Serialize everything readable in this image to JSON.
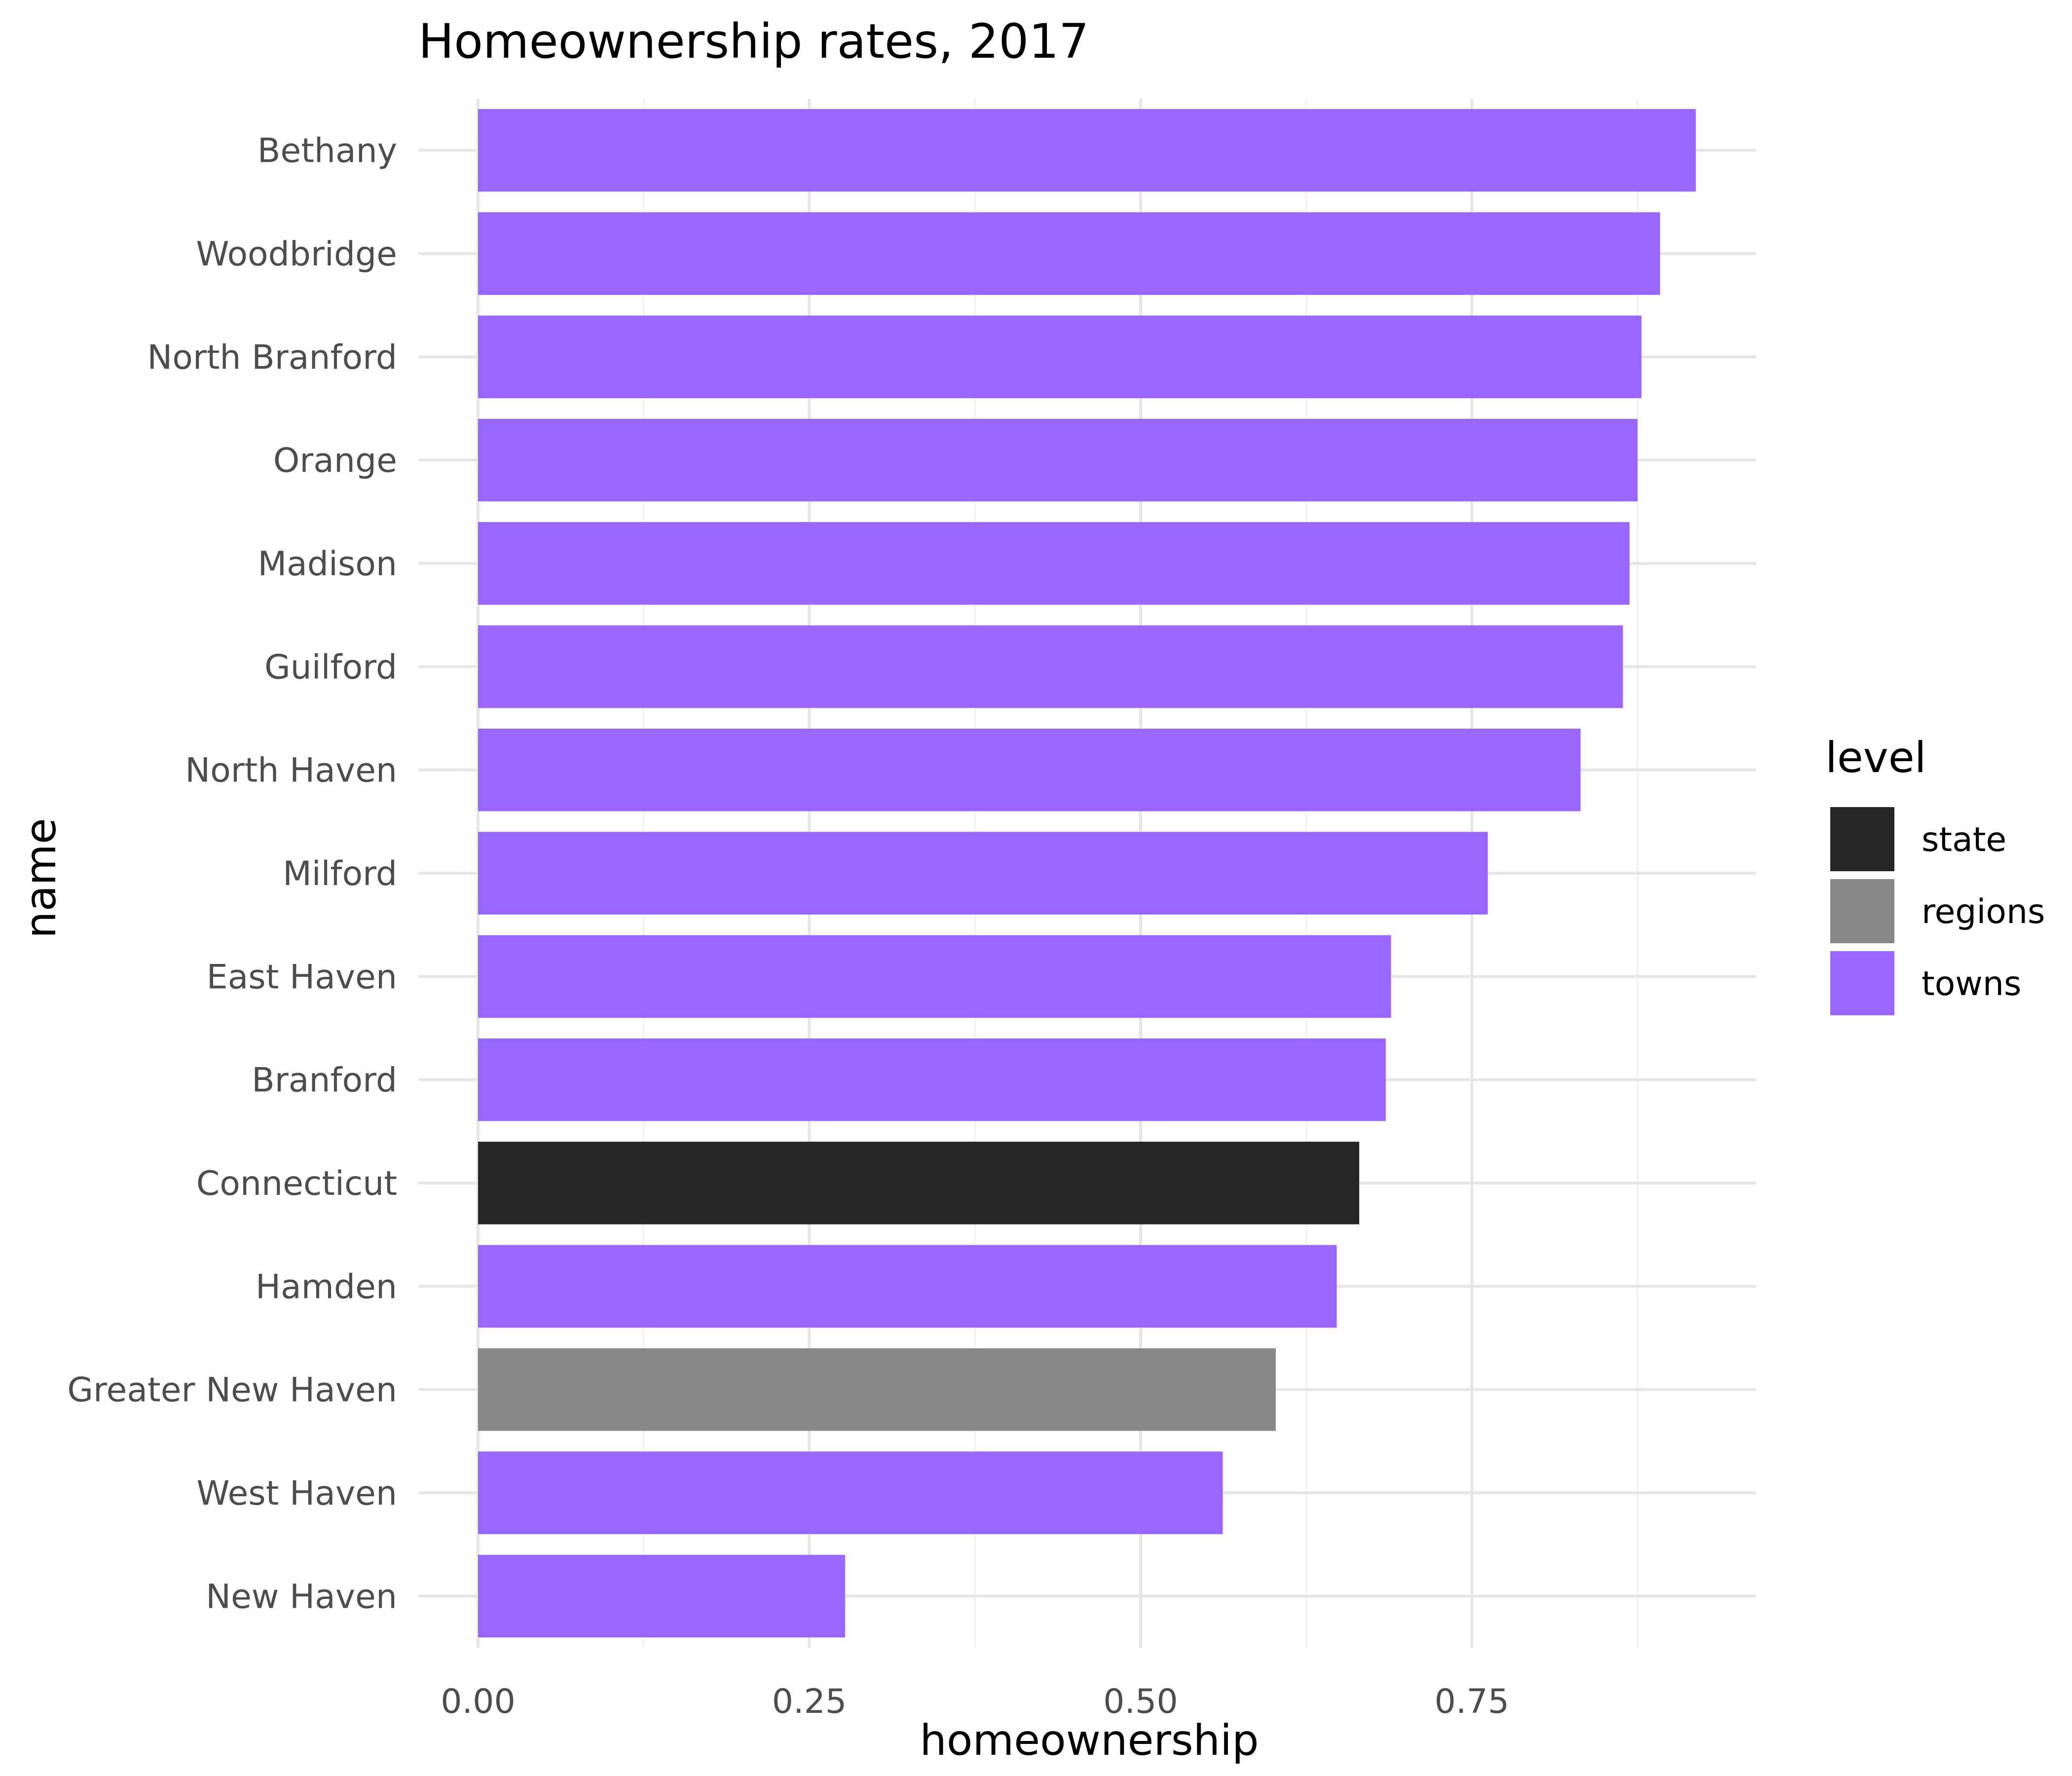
{
  "chart_data": {
    "type": "bar",
    "orientation": "horizontal",
    "title": "Homeownership rates, 2017",
    "xlabel": "homeownership",
    "ylabel": "name",
    "xlim": [
      0,
      0.965
    ],
    "xticks": [
      {
        "value": 0.0,
        "label": "0.00"
      },
      {
        "value": 0.25,
        "label": "0.25"
      },
      {
        "value": 0.5,
        "label": "0.50"
      },
      {
        "value": 0.75,
        "label": "0.75"
      }
    ],
    "minor_gridlines": [
      0.125,
      0.375,
      0.625,
      0.875
    ],
    "grid": true,
    "legend": {
      "title": "level",
      "placement": "right",
      "entries": [
        {
          "key": "state",
          "label": "state",
          "color": "#262626"
        },
        {
          "key": "regions",
          "label": "regions",
          "color": "#888888"
        },
        {
          "key": "towns",
          "label": "towns",
          "color": "#9966ff"
        }
      ]
    },
    "categories": [
      "Bethany",
      "Woodbridge",
      "North Branford",
      "Orange",
      "Madison",
      "Guilford",
      "North Haven",
      "Milford",
      "East Haven",
      "Branford",
      "Connecticut",
      "Hamden",
      "Greater New Haven",
      "West Haven",
      "New Haven"
    ],
    "values": [
      0.919,
      0.892,
      0.878,
      0.875,
      0.869,
      0.864,
      0.832,
      0.762,
      0.689,
      0.685,
      0.665,
      0.648,
      0.602,
      0.562,
      0.277
    ],
    "levels": [
      "towns",
      "towns",
      "towns",
      "towns",
      "towns",
      "towns",
      "towns",
      "towns",
      "towns",
      "towns",
      "state",
      "towns",
      "regions",
      "towns",
      "towns"
    ]
  }
}
